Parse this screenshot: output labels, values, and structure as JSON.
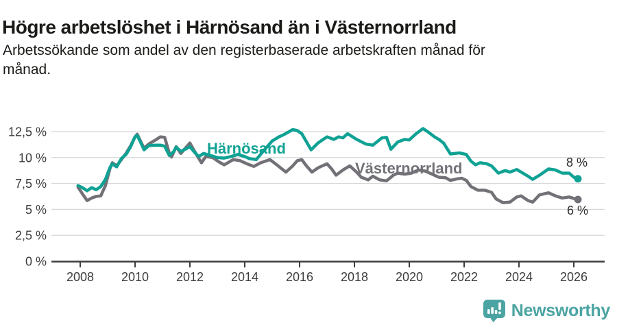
{
  "title": "Högre arbetslöshet i Härnösand än i Västernorrland",
  "subtitle_line1": "Arbetssökande som andel av den registerbaserade arbetskraften månad för",
  "subtitle_line2": "månad.",
  "colors": {
    "harnosand_line": "#0fa294",
    "vasternorrland_line": "#737177",
    "grid": "#d8d8d8",
    "axis": "#3d3d3d",
    "logo_teal": "#4ba4a2"
  },
  "chart_data": {
    "type": "line",
    "unit": "%",
    "grid": true,
    "xlim": [
      2007.8,
      2026.6
    ],
    "ylim": [
      0,
      13.2
    ],
    "x_ticks": [
      "2008",
      "2010",
      "2012",
      "2014",
      "2016",
      "2018",
      "2020",
      "2022",
      "2024",
      "2026"
    ],
    "y_ticks": [
      {
        "value": 0,
        "label": "0 %"
      },
      {
        "value": 2.5,
        "label": "2,5 %"
      },
      {
        "value": 5,
        "label": "5 %"
      },
      {
        "value": 7.5,
        "label": "7,5 %"
      },
      {
        "value": 10,
        "label": "10 %"
      },
      {
        "value": 12.5,
        "label": "12,5 %"
      }
    ],
    "series": [
      {
        "name": "Västernorrland",
        "color": "#737177",
        "end_label": "6 %",
        "points": [
          [
            2007.92,
            7.15
          ],
          [
            2008.08,
            6.5
          ],
          [
            2008.25,
            5.85
          ],
          [
            2008.42,
            6.1
          ],
          [
            2008.58,
            6.25
          ],
          [
            2008.75,
            6.3
          ],
          [
            2008.92,
            7.3
          ],
          [
            2009.08,
            8.9
          ],
          [
            2009.17,
            9.5
          ],
          [
            2009.33,
            9.2
          ],
          [
            2009.5,
            9.8
          ],
          [
            2009.67,
            10.4
          ],
          [
            2009.83,
            11.1
          ],
          [
            2010.0,
            12.0
          ],
          [
            2010.08,
            12.25
          ],
          [
            2010.25,
            11.3
          ],
          [
            2010.33,
            10.9
          ],
          [
            2010.5,
            11.3
          ],
          [
            2010.75,
            11.7
          ],
          [
            2010.92,
            12.0
          ],
          [
            2011.08,
            11.95
          ],
          [
            2011.25,
            10.4
          ],
          [
            2011.33,
            10.05
          ],
          [
            2011.5,
            11.05
          ],
          [
            2011.67,
            10.4
          ],
          [
            2011.83,
            10.9
          ],
          [
            2012.0,
            11.4
          ],
          [
            2012.17,
            10.6
          ],
          [
            2012.42,
            9.5
          ],
          [
            2012.58,
            10.1
          ],
          [
            2012.83,
            10.0
          ],
          [
            2013.08,
            9.55
          ],
          [
            2013.25,
            9.3
          ],
          [
            2013.58,
            9.8
          ],
          [
            2013.83,
            9.7
          ],
          [
            2014.08,
            9.4
          ],
          [
            2014.33,
            9.15
          ],
          [
            2014.58,
            9.5
          ],
          [
            2014.92,
            9.8
          ],
          [
            2015.17,
            9.3
          ],
          [
            2015.5,
            8.6
          ],
          [
            2015.75,
            9.2
          ],
          [
            2015.92,
            9.7
          ],
          [
            2016.08,
            9.8
          ],
          [
            2016.25,
            9.2
          ],
          [
            2016.45,
            8.6
          ],
          [
            2016.67,
            9.0
          ],
          [
            2016.83,
            9.2
          ],
          [
            2017.0,
            9.4
          ],
          [
            2017.17,
            8.9
          ],
          [
            2017.33,
            8.3
          ],
          [
            2017.58,
            8.8
          ],
          [
            2017.83,
            9.2
          ],
          [
            2018.08,
            8.6
          ],
          [
            2018.25,
            8.1
          ],
          [
            2018.5,
            7.85
          ],
          [
            2018.67,
            8.2
          ],
          [
            2018.92,
            7.85
          ],
          [
            2019.17,
            7.75
          ],
          [
            2019.42,
            8.3
          ],
          [
            2019.58,
            8.5
          ],
          [
            2019.83,
            8.4
          ],
          [
            2020.08,
            8.5
          ],
          [
            2020.33,
            8.8
          ],
          [
            2020.58,
            8.7
          ],
          [
            2020.83,
            8.4
          ],
          [
            2021.08,
            8.1
          ],
          [
            2021.33,
            8.05
          ],
          [
            2021.5,
            7.8
          ],
          [
            2021.75,
            7.95
          ],
          [
            2021.92,
            8.0
          ],
          [
            2022.08,
            7.8
          ],
          [
            2022.25,
            7.2
          ],
          [
            2022.5,
            6.85
          ],
          [
            2022.75,
            6.85
          ],
          [
            2023.0,
            6.65
          ],
          [
            2023.17,
            6.0
          ],
          [
            2023.42,
            5.65
          ],
          [
            2023.67,
            5.7
          ],
          [
            2023.92,
            6.2
          ],
          [
            2024.08,
            6.3
          ],
          [
            2024.33,
            5.85
          ],
          [
            2024.5,
            5.7
          ],
          [
            2024.75,
            6.4
          ],
          [
            2025.08,
            6.6
          ],
          [
            2025.33,
            6.3
          ],
          [
            2025.58,
            6.1
          ],
          [
            2025.83,
            6.2
          ],
          [
            2026.0,
            6.05
          ],
          [
            2026.15,
            5.95
          ]
        ]
      },
      {
        "name": "Härnösand",
        "color": "#0fa294",
        "end_label": "8 %",
        "points": [
          [
            2007.92,
            7.3
          ],
          [
            2008.08,
            7.1
          ],
          [
            2008.25,
            6.8
          ],
          [
            2008.42,
            7.1
          ],
          [
            2008.58,
            6.9
          ],
          [
            2008.75,
            7.2
          ],
          [
            2008.92,
            7.9
          ],
          [
            2009.08,
            9.0
          ],
          [
            2009.17,
            9.4
          ],
          [
            2009.33,
            9.1
          ],
          [
            2009.5,
            9.9
          ],
          [
            2009.67,
            10.3
          ],
          [
            2009.83,
            11.0
          ],
          [
            2010.0,
            12.0
          ],
          [
            2010.08,
            12.15
          ],
          [
            2010.25,
            11.2
          ],
          [
            2010.33,
            10.75
          ],
          [
            2010.5,
            11.15
          ],
          [
            2010.75,
            11.2
          ],
          [
            2010.92,
            11.2
          ],
          [
            2011.08,
            11.1
          ],
          [
            2011.25,
            10.2
          ],
          [
            2011.42,
            10.6
          ],
          [
            2011.5,
            11.0
          ],
          [
            2011.67,
            10.6
          ],
          [
            2011.83,
            10.8
          ],
          [
            2012.0,
            11.05
          ],
          [
            2012.17,
            10.5
          ],
          [
            2012.33,
            10.1
          ],
          [
            2012.5,
            10.4
          ],
          [
            2012.75,
            10.2
          ],
          [
            2013.0,
            10.0
          ],
          [
            2013.25,
            9.95
          ],
          [
            2013.5,
            10.1
          ],
          [
            2013.75,
            10.3
          ],
          [
            2014.0,
            10.1
          ],
          [
            2014.17,
            9.9
          ],
          [
            2014.42,
            9.8
          ],
          [
            2014.67,
            10.6
          ],
          [
            2015.0,
            11.6
          ],
          [
            2015.25,
            12.0
          ],
          [
            2015.42,
            12.2
          ],
          [
            2015.75,
            12.7
          ],
          [
            2015.92,
            12.6
          ],
          [
            2016.08,
            12.3
          ],
          [
            2016.42,
            10.75
          ],
          [
            2016.67,
            11.4
          ],
          [
            2016.83,
            11.7
          ],
          [
            2017.0,
            12.0
          ],
          [
            2017.25,
            11.75
          ],
          [
            2017.42,
            12.0
          ],
          [
            2017.58,
            11.9
          ],
          [
            2017.75,
            12.3
          ],
          [
            2018.08,
            11.75
          ],
          [
            2018.42,
            11.3
          ],
          [
            2018.67,
            11.2
          ],
          [
            2019.0,
            11.9
          ],
          [
            2019.17,
            11.95
          ],
          [
            2019.33,
            10.8
          ],
          [
            2019.58,
            11.5
          ],
          [
            2019.83,
            11.75
          ],
          [
            2020.0,
            11.7
          ],
          [
            2020.25,
            12.3
          ],
          [
            2020.5,
            12.8
          ],
          [
            2020.67,
            12.5
          ],
          [
            2020.92,
            12.0
          ],
          [
            2021.08,
            11.75
          ],
          [
            2021.25,
            11.4
          ],
          [
            2021.5,
            10.35
          ],
          [
            2021.83,
            10.45
          ],
          [
            2022.08,
            10.3
          ],
          [
            2022.25,
            9.65
          ],
          [
            2022.42,
            9.3
          ],
          [
            2022.58,
            9.5
          ],
          [
            2022.83,
            9.4
          ],
          [
            2023.0,
            9.2
          ],
          [
            2023.25,
            8.5
          ],
          [
            2023.5,
            8.75
          ],
          [
            2023.67,
            8.6
          ],
          [
            2023.92,
            8.85
          ],
          [
            2024.08,
            8.6
          ],
          [
            2024.33,
            8.2
          ],
          [
            2024.5,
            7.9
          ],
          [
            2024.75,
            8.3
          ],
          [
            2025.08,
            8.9
          ],
          [
            2025.33,
            8.8
          ],
          [
            2025.58,
            8.5
          ],
          [
            2025.83,
            8.5
          ],
          [
            2026.0,
            8.1
          ],
          [
            2026.15,
            7.95
          ]
        ]
      }
    ]
  },
  "footer": {
    "brand": "Newsworthy",
    "icon": "bar-chart-speech-bubble-icon"
  }
}
